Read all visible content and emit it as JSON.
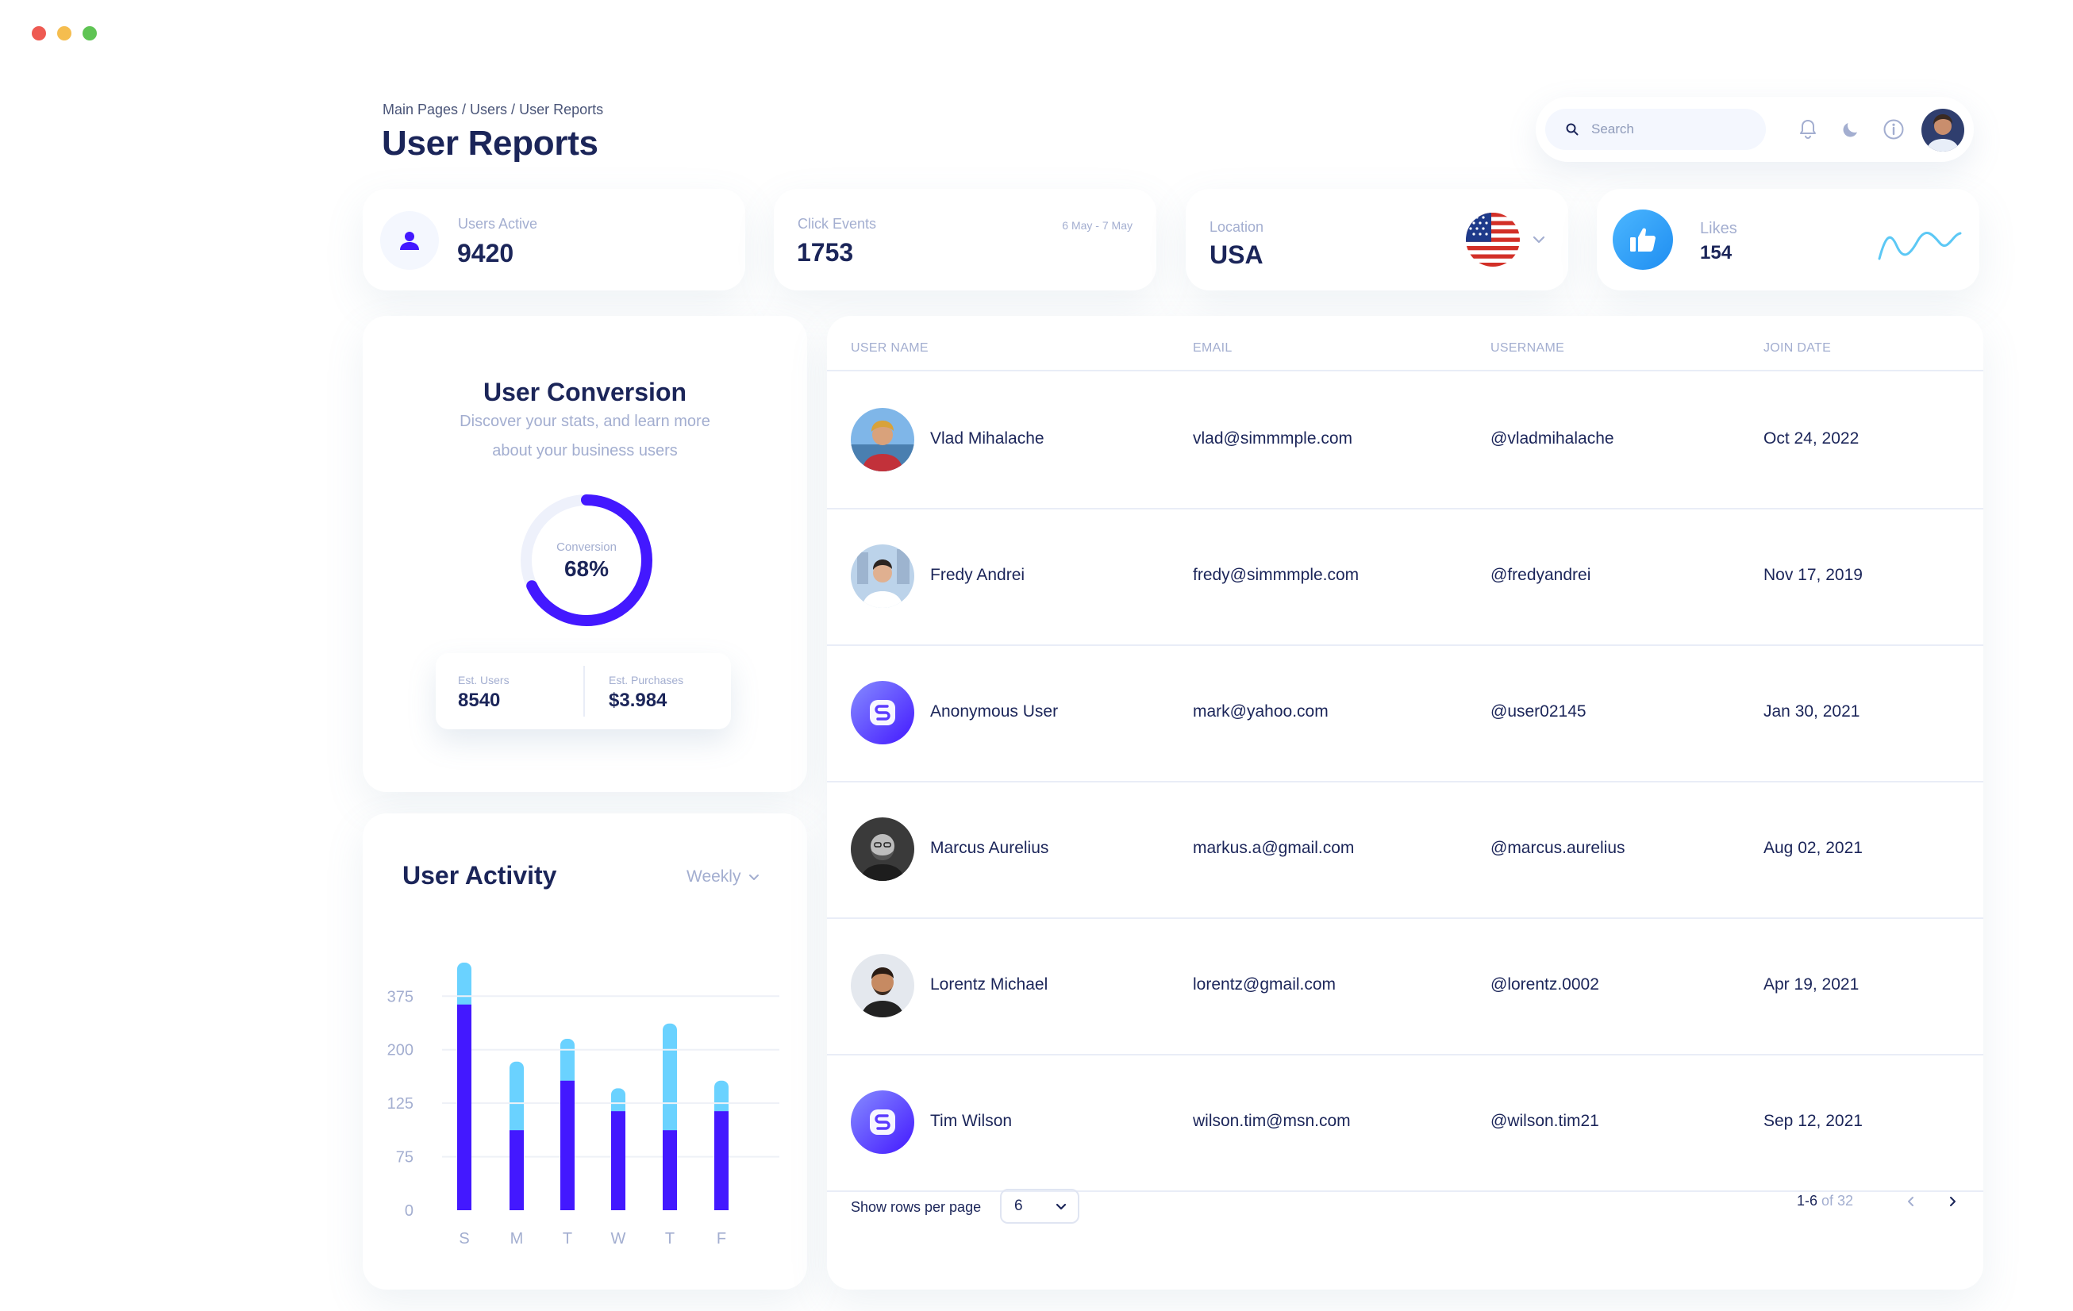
{
  "window_controls": {
    "close_color": "#ee5a52",
    "minimize_color": "#f5bd4f",
    "maximize_color": "#5fc454"
  },
  "breadcrumb": "Main Pages / Users / User Reports",
  "page_title": "User Reports",
  "topbar": {
    "search_placeholder": "Search",
    "icons": [
      "bell-icon",
      "moon-icon",
      "info-icon"
    ]
  },
  "stats": {
    "users_active": {
      "label": "Users Active",
      "value": "9420"
    },
    "click_events": {
      "label": "Click Events",
      "value": "1753",
      "date_range": "6 May - 7 May"
    },
    "location": {
      "label": "Location",
      "value": "USA"
    },
    "likes": {
      "label": "Likes",
      "value": "154"
    }
  },
  "conversion": {
    "title": "User Conversion",
    "subtitle_line1": "Discover your stats, and learn more",
    "subtitle_line2": "about your business users",
    "center_label": "Conversion",
    "percent_label": "68%",
    "percent": 68,
    "est_users_label": "Est. Users",
    "est_users_value": "8540",
    "est_purchases_label": "Est. Purchases",
    "est_purchases_value": "$3.984"
  },
  "activity": {
    "title": "User Activity",
    "period": "Weekly"
  },
  "chart_data": {
    "type": "bar",
    "stacked": true,
    "categories": [
      "S",
      "M",
      "T",
      "W",
      "T",
      "F"
    ],
    "y_tick_labels": [
      "0",
      "75",
      "125",
      "200",
      "375"
    ],
    "series": [
      {
        "values": [
          270,
          105,
          170,
          130,
          105,
          130
        ],
        "color": "#4318ff"
      },
      {
        "values": [
          55,
          90,
          55,
          30,
          140,
          40
        ],
        "color": "#6ad2ff"
      }
    ],
    "grid": true
  },
  "table": {
    "headers": {
      "name": "USER NAME",
      "email": "EMAIL",
      "username": "USERNAME",
      "join_date": "JOIN DATE"
    },
    "rows": [
      {
        "name": "Vlad Mihalache",
        "email": "vlad@simmmple.com",
        "username": "@vladmihalache",
        "join_date": "Oct 24, 2022",
        "avatar": "photo-1"
      },
      {
        "name": "Fredy Andrei",
        "email": "fredy@simmmple.com",
        "username": "@fredyandrei",
        "join_date": "Nov 17, 2019",
        "avatar": "photo-2"
      },
      {
        "name": "Anonymous User",
        "email": "mark@yahoo.com",
        "username": "@user02145",
        "join_date": "Jan 30, 2021",
        "avatar": "logo"
      },
      {
        "name": "Marcus Aurelius",
        "email": "markus.a@gmail.com",
        "username": "@marcus.aurelius",
        "join_date": "Aug 02, 2021",
        "avatar": "photo-3"
      },
      {
        "name": "Lorentz Michael",
        "email": "lorentz@gmail.com",
        "username": "@lorentz.0002",
        "join_date": "Apr 19, 2021",
        "avatar": "photo-4"
      },
      {
        "name": "Tim Wilson",
        "email": "wilson.tim@msn.com",
        "username": "@wilson.tim21",
        "join_date": "Sep 12, 2021",
        "avatar": "logo"
      }
    ]
  },
  "pagination": {
    "rows_label": "Show rows per page",
    "rows_value": "6",
    "range": "1-6",
    "of_total": "of 32"
  }
}
